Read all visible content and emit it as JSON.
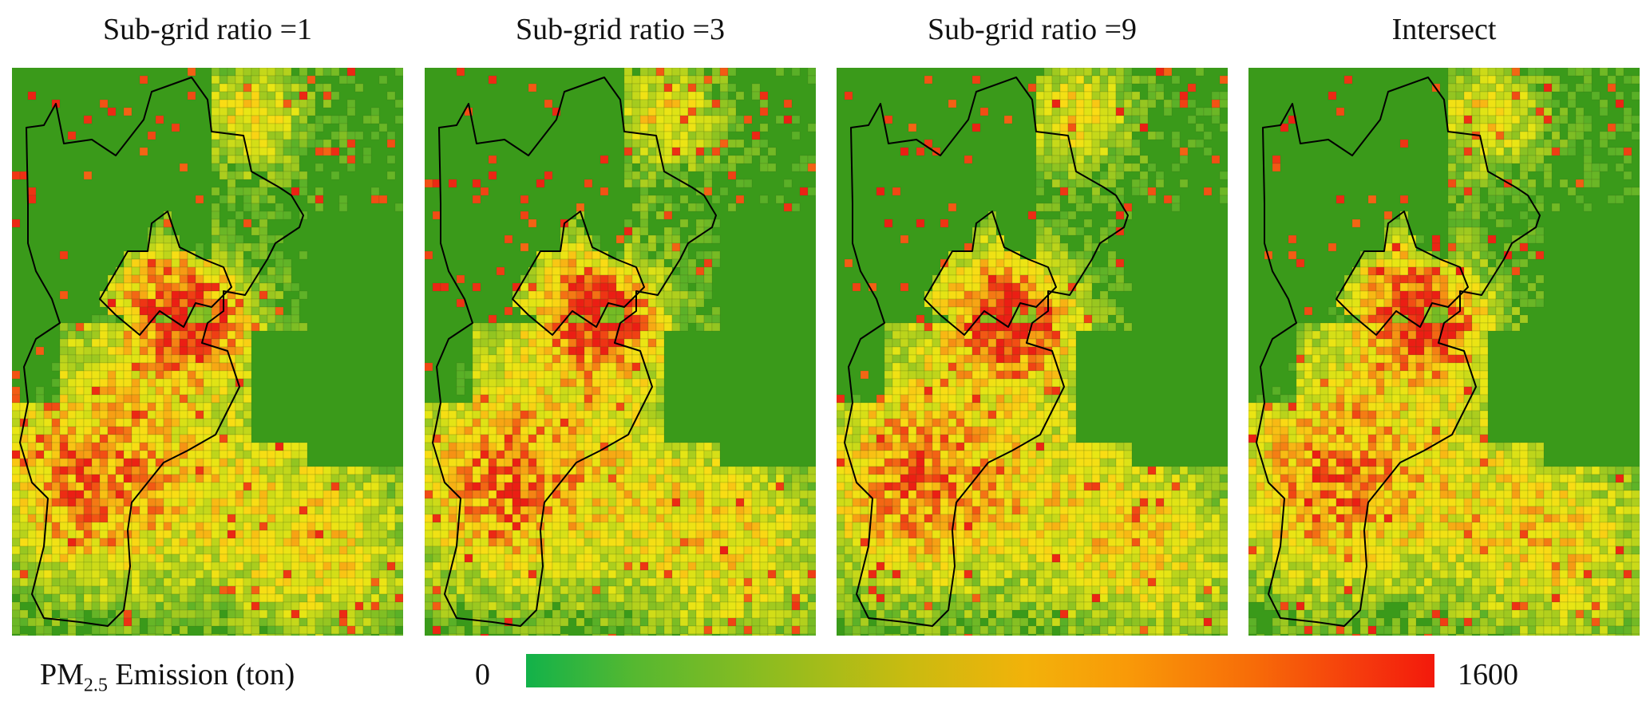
{
  "panels": [
    {
      "title": "Sub-grid ratio =1",
      "seed": 11
    },
    {
      "title": "Sub-grid ratio =3",
      "seed": 23
    },
    {
      "title": "Sub-grid ratio =9",
      "seed": 37
    },
    {
      "title": "Intersect",
      "seed": 51
    }
  ],
  "legend": {
    "label_main": "PM",
    "label_sub": "2.5",
    "label_rest": " Emission (ton)",
    "min": "0",
    "max": "1600"
  },
  "colors": {
    "background_green": "#3a9a1a",
    "low": "#12b24a",
    "mid": "#f2b20a",
    "high": "#f3190c",
    "boundary": "#000000"
  }
}
